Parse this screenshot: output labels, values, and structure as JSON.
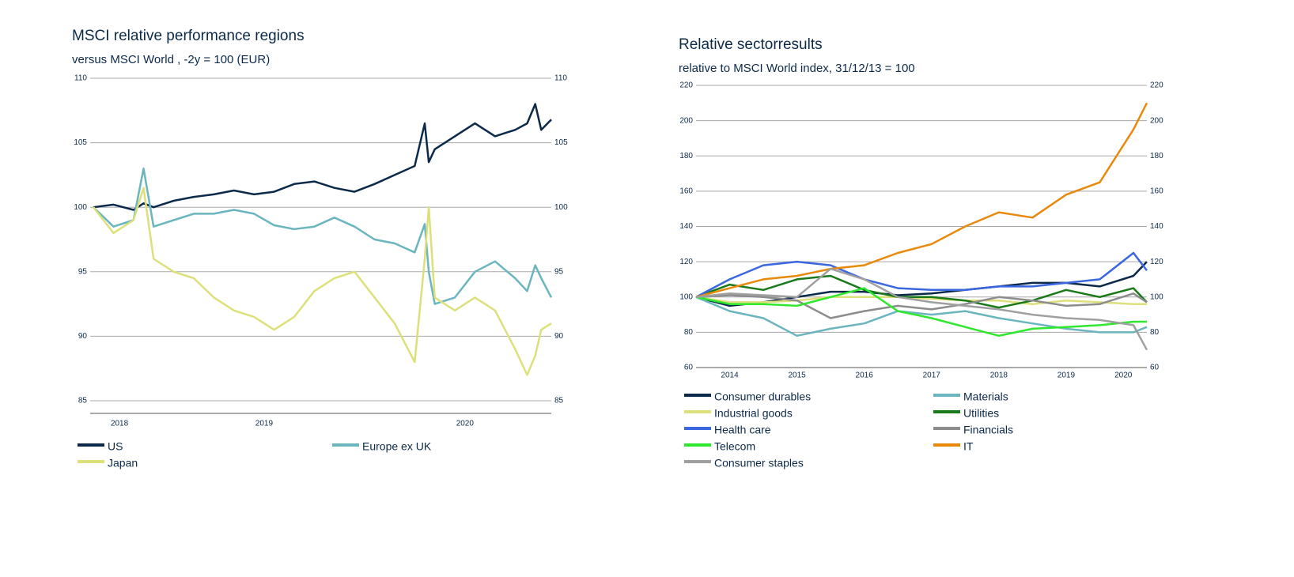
{
  "chart_data": [
    {
      "type": "line",
      "title": "MSCI relative performance regions",
      "subtitle": "versus MSCI World , -2y  = 100 (EUR)",
      "x": [
        2018.15,
        2018.25,
        2018.35,
        2018.4,
        2018.45,
        2018.55,
        2018.65,
        2018.75,
        2018.85,
        2018.95,
        2019.05,
        2019.15,
        2019.25,
        2019.35,
        2019.45,
        2019.55,
        2019.65,
        2019.75,
        2019.8,
        2019.82,
        2019.85,
        2019.95,
        2020.05,
        2020.15,
        2020.25,
        2020.31,
        2020.35,
        2020.38,
        2020.43
      ],
      "xlim": [
        2018.134,
        2020.43
      ],
      "xticks": [
        {
          "value": 2018.28,
          "label": "2018"
        },
        2019,
        2020
      ],
      "ylim": [
        85,
        110
      ],
      "yticks": [
        85,
        90,
        95,
        100,
        105,
        110
      ],
      "grid": true,
      "series": [
        {
          "name": "US",
          "color": "#0b2a4a",
          "values": [
            100,
            100.2,
            99.8,
            100.3,
            100,
            100.5,
            100.8,
            101,
            101.3,
            101,
            101.2,
            101.8,
            102,
            101.5,
            101.2,
            101.8,
            102.5,
            103.2,
            106.5,
            103.5,
            104.5,
            105.5,
            106.5,
            105.5,
            106,
            106.5,
            108,
            106,
            106.8
          ]
        },
        {
          "name": "Europe ex UK",
          "color": "#6bb5bf",
          "values": [
            100,
            98.5,
            99,
            103,
            98.5,
            99,
            99.5,
            99.5,
            99.8,
            99.5,
            98.6,
            98.3,
            98.5,
            99.2,
            98.5,
            97.5,
            97.2,
            96.5,
            98.7,
            95,
            92.5,
            93,
            95,
            95.8,
            94.5,
            93.5,
            95.5,
            94.5,
            93
          ]
        },
        {
          "name": "Japan",
          "color": "#dde07a",
          "values": [
            100,
            98,
            99,
            101.5,
            96,
            95,
            94.5,
            93,
            92,
            91.5,
            90.5,
            91.5,
            93.5,
            94.5,
            95,
            93,
            91,
            88,
            96,
            100,
            93,
            92,
            93,
            92,
            89,
            87,
            88.5,
            90.5,
            91
          ]
        }
      ]
    },
    {
      "type": "line",
      "title": "Relative sectorresults",
      "subtitle": "relative to MSCI World index, 31/12/13 = 100",
      "x": [
        2014,
        2014.5,
        2015,
        2015.5,
        2016,
        2016.5,
        2017,
        2017.5,
        2018,
        2018.5,
        2019,
        2019.5,
        2020,
        2020.5,
        2020.7
      ],
      "xlim": [
        2014,
        2020.7
      ],
      "xticks": [
        {
          "value": 2014.5,
          "label": "2014"
        },
        {
          "value": 2015.5,
          "label": "2015"
        },
        {
          "value": 2016.5,
          "label": "2016"
        },
        {
          "value": 2017.5,
          "label": "2017"
        },
        {
          "value": 2018.5,
          "label": "2018"
        },
        {
          "value": 2019.5,
          "label": "2019"
        },
        {
          "value": 2020.35,
          "label": "2020"
        }
      ],
      "ylim": [
        60,
        220
      ],
      "yticks": [
        60,
        80,
        100,
        120,
        140,
        160,
        180,
        200,
        220
      ],
      "grid": true,
      "series": [
        {
          "name": "Consumer durables",
          "color": "#0b2a4a",
          "values": [
            100,
            95,
            97,
            100,
            103,
            103,
            101,
            102,
            104,
            106,
            108,
            108,
            106,
            112,
            120
          ]
        },
        {
          "name": "Materials",
          "color": "#6bb5bf",
          "values": [
            100,
            92,
            88,
            78,
            82,
            85,
            92,
            90,
            92,
            88,
            85,
            82,
            80,
            80,
            83
          ]
        },
        {
          "name": "Industrial goods",
          "color": "#dde07a",
          "values": [
            100,
            97,
            97,
            98,
            100,
            100,
            100,
            99,
            98,
            98,
            96,
            98,
            97,
            96,
            96
          ]
        },
        {
          "name": "Utilities",
          "color": "#1a7a1a",
          "values": [
            100,
            107,
            104,
            110,
            112,
            104,
            100,
            100,
            98,
            94,
            98,
            104,
            100,
            105,
            97
          ]
        },
        {
          "name": "Health care",
          "color": "#3a66e0",
          "values": [
            100,
            110,
            118,
            120,
            118,
            110,
            105,
            104,
            104,
            106,
            106,
            108,
            110,
            125,
            115
          ]
        },
        {
          "name": "Financials",
          "color": "#8c8c8c",
          "values": [
            100,
            101,
            100,
            98,
            88,
            92,
            95,
            93,
            96,
            100,
            98,
            95,
            96,
            102,
            97
          ]
        },
        {
          "name": "Telecom",
          "color": "#2ee82e",
          "values": [
            100,
            96,
            96,
            95,
            100,
            105,
            92,
            88,
            83,
            78,
            82,
            83,
            84,
            86,
            86
          ]
        },
        {
          "name": "IT",
          "color": "#e8890c",
          "values": [
            100,
            105,
            110,
            112,
            116,
            118,
            125,
            130,
            140,
            148,
            145,
            158,
            165,
            195,
            210
          ]
        },
        {
          "name": "Consumer staples",
          "color": "#a0a0a0",
          "values": [
            100,
            102,
            101,
            100,
            116,
            110,
            100,
            97,
            95,
            93,
            90,
            88,
            87,
            84,
            70
          ]
        }
      ]
    }
  ]
}
